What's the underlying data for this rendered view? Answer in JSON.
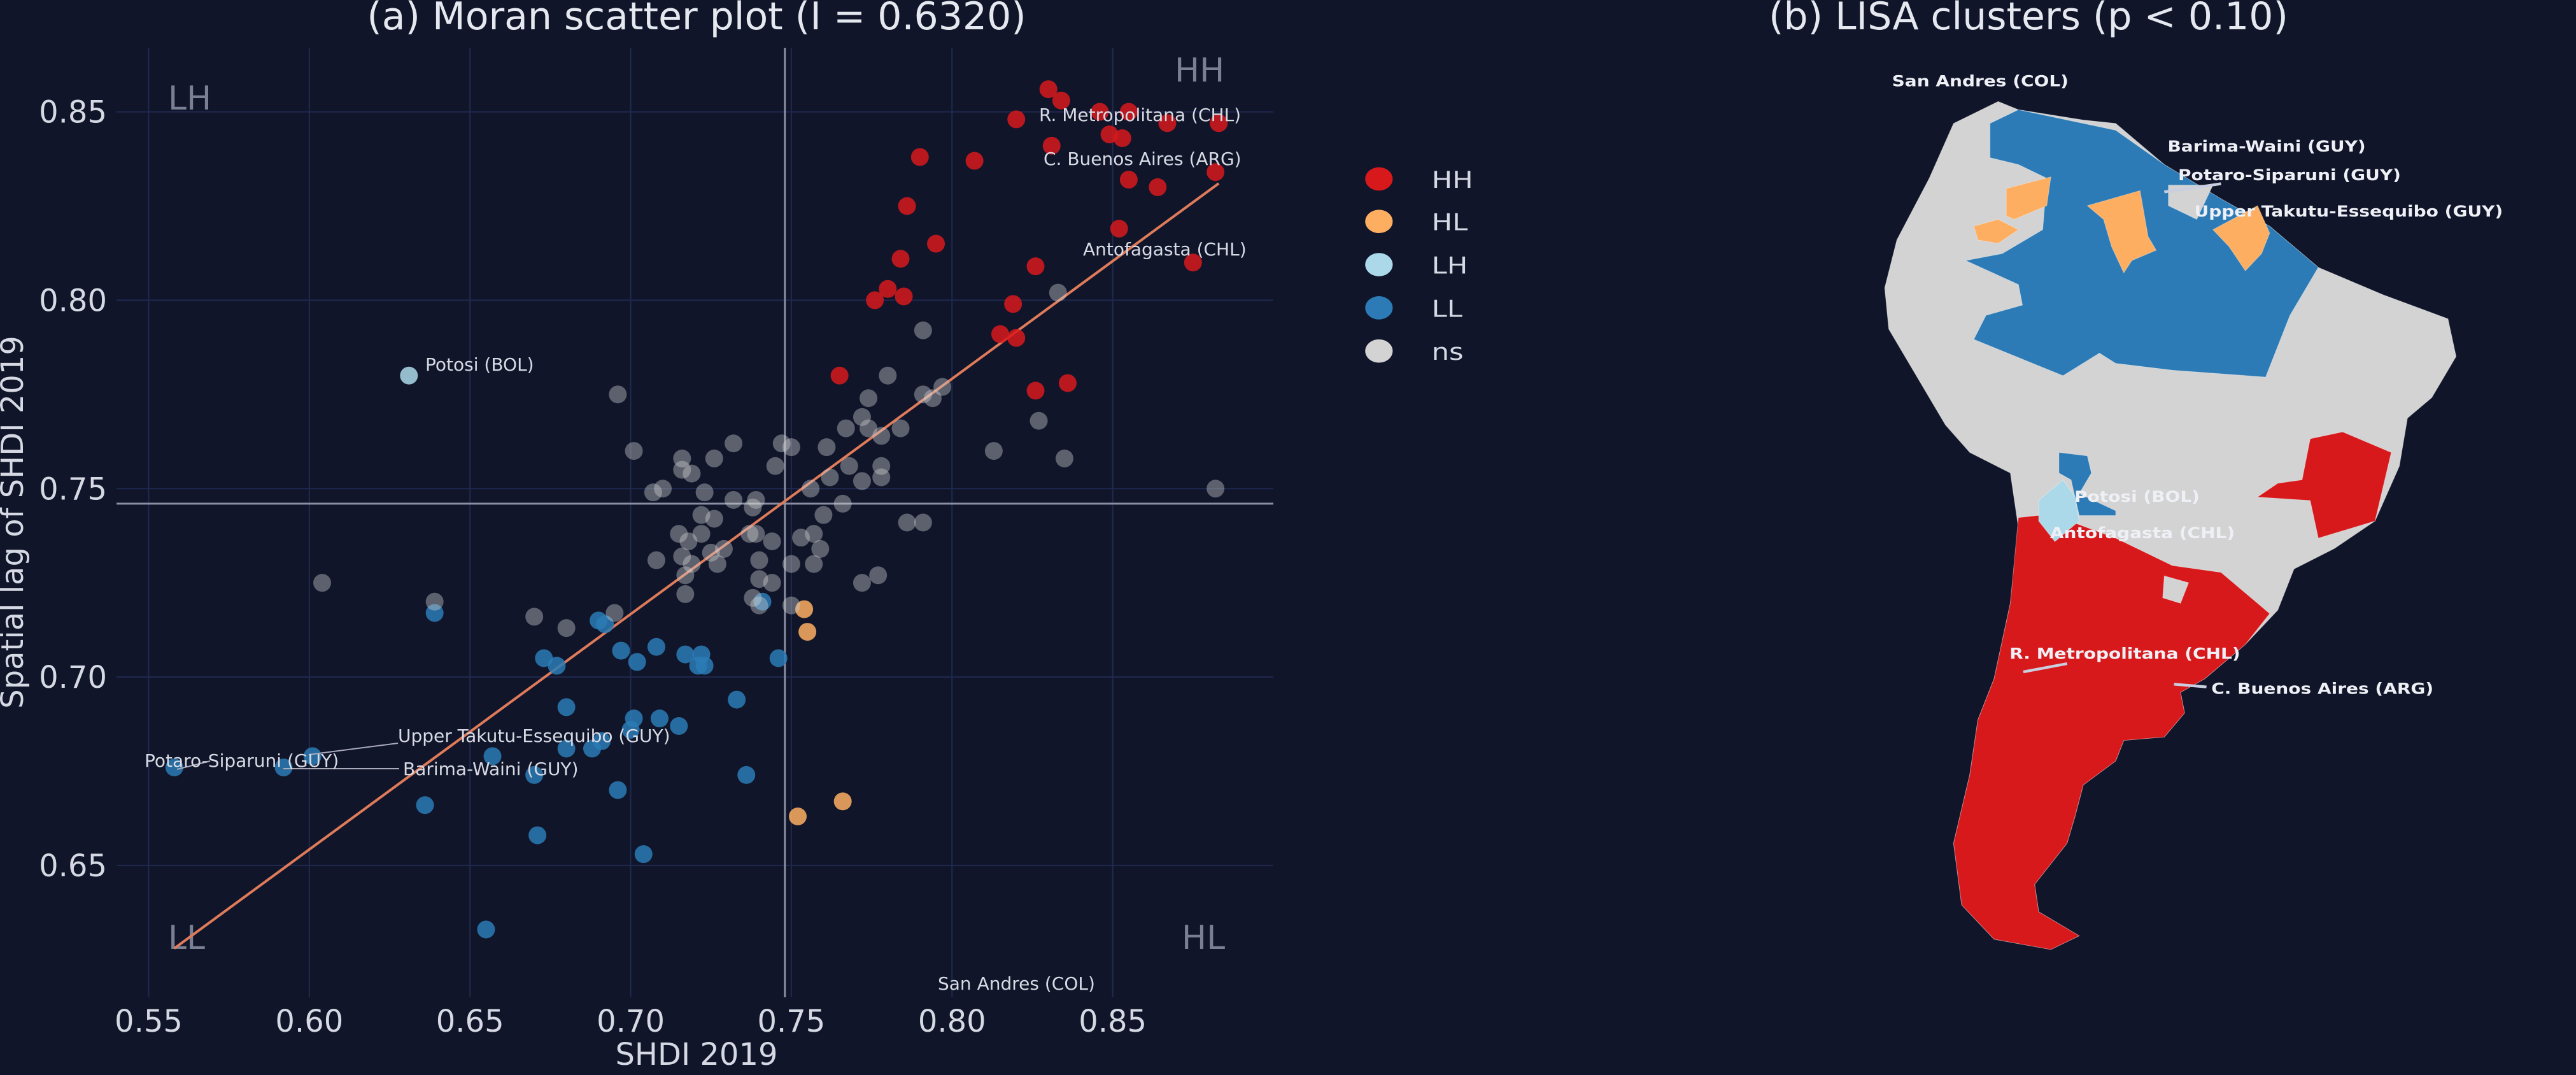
{
  "colors": {
    "background": "#10152a",
    "grid": "#1f2a50",
    "HH": "#d7191c",
    "HL": "#fdae61",
    "LH": "#abd9e9",
    "LL": "#2c7bb6",
    "ns": "#d3d3d3",
    "regression": "#e07b5a",
    "mean_line": "#8a8fa3"
  },
  "chart_data": [
    {
      "type": "scatter",
      "title": "(a) Moran scatter plot (I = 0.6320)",
      "xlabel": "SHDI 2019",
      "ylabel": "Spatial lag of SHDI 2019",
      "xlim": [
        0.54,
        0.9
      ],
      "ylim": [
        0.615,
        0.867
      ],
      "xticks": [
        "0.55",
        "0.60",
        "0.65",
        "0.70",
        "0.75",
        "0.80",
        "0.85"
      ],
      "yticks": [
        "0.65",
        "0.70",
        "0.75",
        "0.80",
        "0.85"
      ],
      "grid": true,
      "mean_x": 0.748,
      "mean_y": 0.746,
      "regression": {
        "from": [
          0.558,
          0.628
        ],
        "to": [
          0.883,
          0.831
        ]
      },
      "quadrant_labels": {
        "LH": "LH",
        "HH": "HH",
        "LL": "LL",
        "HL": "HL"
      },
      "series": [
        {
          "name": "HH",
          "points": [
            [
              0.83,
              0.856
            ],
            [
              0.834,
              0.853
            ],
            [
              0.82,
              0.848
            ],
            [
              0.846,
              0.85
            ],
            [
              0.855,
              0.85
            ],
            [
              0.867,
              0.847
            ],
            [
              0.883,
              0.847
            ],
            [
              0.849,
              0.844
            ],
            [
              0.853,
              0.843
            ],
            [
              0.831,
              0.841
            ],
            [
              0.79,
              0.838
            ],
            [
              0.807,
              0.837
            ],
            [
              0.882,
              0.834
            ],
            [
              0.855,
              0.832
            ],
            [
              0.864,
              0.83
            ],
            [
              0.786,
              0.825
            ],
            [
              0.852,
              0.819
            ],
            [
              0.795,
              0.815
            ],
            [
              0.784,
              0.811
            ],
            [
              0.826,
              0.809
            ],
            [
              0.875,
              0.81
            ],
            [
              0.776,
              0.8
            ],
            [
              0.78,
              0.803
            ],
            [
              0.785,
              0.801
            ],
            [
              0.819,
              0.799
            ],
            [
              0.815,
              0.791
            ],
            [
              0.82,
              0.79
            ],
            [
              0.765,
              0.78
            ],
            [
              0.826,
              0.776
            ],
            [
              0.836,
              0.778
            ]
          ]
        },
        {
          "name": "HL",
          "points": [
            [
              0.754,
              0.718
            ],
            [
              0.755,
              0.712
            ],
            [
              0.752,
              0.663
            ],
            [
              0.766,
              0.667
            ]
          ]
        },
        {
          "name": "LH",
          "points": [
            [
              0.631,
              0.78
            ]
          ]
        },
        {
          "name": "LL",
          "points": [
            [
              0.639,
              0.717
            ],
            [
              0.558,
              0.676
            ],
            [
              0.592,
              0.676
            ],
            [
              0.601,
              0.679
            ],
            [
              0.657,
              0.679
            ],
            [
              0.636,
              0.666
            ],
            [
              0.655,
              0.633
            ],
            [
              0.671,
              0.658
            ],
            [
              0.67,
              0.674
            ],
            [
              0.673,
              0.705
            ],
            [
              0.677,
              0.703
            ],
            [
              0.68,
              0.692
            ],
            [
              0.68,
              0.681
            ],
            [
              0.688,
              0.681
            ],
            [
              0.691,
              0.683
            ],
            [
              0.69,
              0.715
            ],
            [
              0.692,
              0.714
            ],
            [
              0.697,
              0.707
            ],
            [
              0.702,
              0.704
            ],
            [
              0.708,
              0.708
            ],
            [
              0.701,
              0.689
            ],
            [
              0.7,
              0.686
            ],
            [
              0.709,
              0.689
            ],
            [
              0.715,
              0.687
            ],
            [
              0.696,
              0.67
            ],
            [
              0.704,
              0.653
            ],
            [
              0.717,
              0.706
            ],
            [
              0.722,
              0.706
            ],
            [
              0.721,
              0.703
            ],
            [
              0.723,
              0.703
            ],
            [
              0.733,
              0.694
            ],
            [
              0.736,
              0.674
            ],
            [
              0.741,
              0.72
            ],
            [
              0.746,
              0.705
            ]
          ]
        },
        {
          "name": "ns",
          "points": [
            [
              0.696,
              0.775
            ],
            [
              0.604,
              0.725
            ],
            [
              0.639,
              0.72
            ],
            [
              0.701,
              0.76
            ],
            [
              0.716,
              0.758
            ],
            [
              0.716,
              0.755
            ],
            [
              0.719,
              0.754
            ],
            [
              0.726,
              0.758
            ],
            [
              0.732,
              0.762
            ],
            [
              0.747,
              0.762
            ],
            [
              0.75,
              0.761
            ],
            [
              0.745,
              0.756
            ],
            [
              0.707,
              0.749
            ],
            [
              0.71,
              0.75
            ],
            [
              0.723,
              0.749
            ],
            [
              0.732,
              0.747
            ],
            [
              0.739,
              0.747
            ],
            [
              0.738,
              0.745
            ],
            [
              0.722,
              0.743
            ],
            [
              0.726,
              0.742
            ],
            [
              0.715,
              0.738
            ],
            [
              0.718,
              0.736
            ],
            [
              0.722,
              0.738
            ],
            [
              0.737,
              0.738
            ],
            [
              0.739,
              0.738
            ],
            [
              0.716,
              0.732
            ],
            [
              0.708,
              0.731
            ],
            [
              0.719,
              0.73
            ],
            [
              0.725,
              0.733
            ],
            [
              0.729,
              0.734
            ],
            [
              0.727,
              0.73
            ],
            [
              0.74,
              0.731
            ],
            [
              0.744,
              0.736
            ],
            [
              0.717,
              0.727
            ],
            [
              0.74,
              0.726
            ],
            [
              0.744,
              0.725
            ],
            [
              0.717,
              0.722
            ],
            [
              0.738,
              0.721
            ],
            [
              0.74,
              0.719
            ],
            [
              0.75,
              0.719
            ],
            [
              0.67,
              0.716
            ],
            [
              0.68,
              0.713
            ],
            [
              0.695,
              0.717
            ],
            [
              0.756,
              0.75
            ],
            [
              0.753,
              0.737
            ],
            [
              0.757,
              0.738
            ],
            [
              0.759,
              0.734
            ],
            [
              0.75,
              0.73
            ],
            [
              0.757,
              0.73
            ],
            [
              0.76,
              0.743
            ],
            [
              0.762,
              0.753
            ],
            [
              0.761,
              0.761
            ],
            [
              0.767,
              0.766
            ],
            [
              0.768,
              0.756
            ],
            [
              0.772,
              0.769
            ],
            [
              0.774,
              0.766
            ],
            [
              0.774,
              0.774
            ],
            [
              0.778,
              0.764
            ],
            [
              0.778,
              0.756
            ],
            [
              0.778,
              0.753
            ],
            [
              0.772,
              0.752
            ],
            [
              0.766,
              0.746
            ],
            [
              0.78,
              0.78
            ],
            [
              0.784,
              0.766
            ],
            [
              0.791,
              0.792
            ],
            [
              0.791,
              0.775
            ],
            [
              0.794,
              0.774
            ],
            [
              0.797,
              0.777
            ],
            [
              0.786,
              0.741
            ],
            [
              0.791,
              0.741
            ],
            [
              0.772,
              0.725
            ],
            [
              0.777,
              0.727
            ],
            [
              0.813,
              0.76
            ],
            [
              0.827,
              0.768
            ],
            [
              0.835,
              0.758
            ],
            [
              0.833,
              0.802
            ],
            [
              0.882,
              0.75
            ]
          ]
        }
      ],
      "annotations": [
        {
          "text": "Potosi (BOL)",
          "x": 0.631,
          "y": 0.78
        },
        {
          "text": "R. Metropolitana (CHL)",
          "x": 0.882,
          "y": 0.847
        },
        {
          "text": "C. Buenos Aires (ARG)",
          "x": 0.882,
          "y": 0.834
        },
        {
          "text": "Antofagasta (CHL)",
          "x": 0.875,
          "y": 0.81
        },
        {
          "text": "San Andres (COL)",
          "x": 0.8,
          "y": 0.62
        },
        {
          "text": "Upper Takutu-Essequibo (GUY)",
          "x": 0.601,
          "y": 0.679
        },
        {
          "text": "Potaro-Siparuni (GUY)",
          "x": 0.558,
          "y": 0.676
        },
        {
          "text": "Barima-Waini (GUY)",
          "x": 0.592,
          "y": 0.676
        }
      ]
    },
    {
      "type": "map",
      "title": "(b) LISA clusters (p < 0.10)",
      "legend": {
        "placement": "left",
        "entries": [
          "HH",
          "HL",
          "LH",
          "LL",
          "ns"
        ]
      },
      "labels": [
        "San Andres (COL)",
        "Barima-Waini (GUY)",
        "Potaro-Siparuni (GUY)",
        "Upper Takutu-Essequibo (GUY)",
        "Potosi (BOL)",
        "Antofagasta (CHL)",
        "R. Metropolitana (CHL)",
        "C. Buenos Aires (ARG)"
      ]
    }
  ]
}
